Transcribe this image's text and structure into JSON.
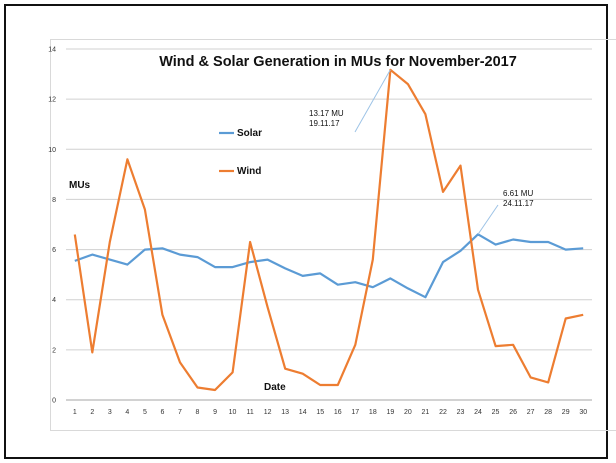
{
  "chart_data": {
    "type": "line",
    "title": "Wind & Solar Generation in MUs for November-2017",
    "ylabel": "MUs",
    "xlabel": "Date",
    "ylim": [
      0,
      14
    ],
    "yticks": [
      "0",
      "2",
      "4",
      "6",
      "8",
      "10",
      "12",
      "14"
    ],
    "x": [
      "1",
      "2",
      "3",
      "4",
      "5",
      "6",
      "7",
      "8",
      "9",
      "10",
      "11",
      "12",
      "13",
      "14",
      "15",
      "16",
      "17",
      "18",
      "19",
      "20",
      "21",
      "22",
      "23",
      "24",
      "25",
      "26",
      "27",
      "28",
      "29",
      "30"
    ],
    "grid": true,
    "legend_position": "center-left",
    "series": [
      {
        "name": "Solar",
        "color": "#5b9bd5",
        "values": [
          5.55,
          5.8,
          5.6,
          5.4,
          6.0,
          6.05,
          5.8,
          5.7,
          5.3,
          5.3,
          5.5,
          5.6,
          5.25,
          4.95,
          5.05,
          4.6,
          4.7,
          4.5,
          4.85,
          4.45,
          4.1,
          5.5,
          5.95,
          6.61,
          6.2,
          6.4,
          6.3,
          6.3,
          6.0,
          6.05
        ]
      },
      {
        "name": "Wind",
        "color": "#ed7d31",
        "values": [
          6.6,
          1.9,
          6.3,
          9.6,
          7.6,
          3.4,
          1.5,
          0.5,
          0.4,
          1.1,
          6.3,
          3.7,
          1.25,
          1.05,
          0.6,
          0.6,
          2.2,
          5.6,
          13.17,
          12.6,
          11.4,
          8.3,
          9.35,
          4.4,
          2.15,
          2.2,
          0.9,
          0.7,
          3.25,
          3.4
        ]
      }
    ],
    "annotations": [
      {
        "lines": [
          "13.17 MU",
          "19.11.17"
        ],
        "series": "Wind",
        "x": "19",
        "y": 13.17
      },
      {
        "lines": [
          "6.61 MU",
          "24.11.17"
        ],
        "series": "Solar",
        "x": "24",
        "y": 6.61
      }
    ]
  }
}
